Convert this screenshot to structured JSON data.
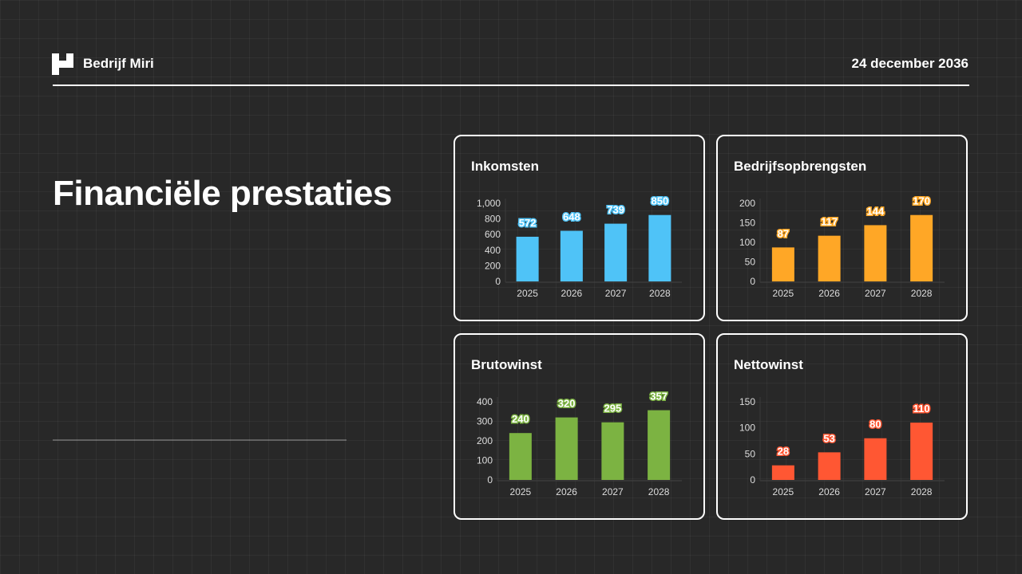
{
  "header": {
    "brand": "Bedrijf Miri",
    "date": "24 december 2036"
  },
  "page_title": "Financiële prestaties",
  "chart_data": [
    {
      "type": "bar",
      "title": "Inkomsten",
      "categories": [
        "2025",
        "2026",
        "2027",
        "2028"
      ],
      "values": [
        572,
        648,
        739,
        850
      ],
      "ylim": [
        0,
        1000
      ],
      "yticks": [
        "0",
        "200",
        "400",
        "600",
        "800",
        "1,000"
      ],
      "tickvals": [
        0,
        200,
        400,
        600,
        800,
        1000
      ],
      "color": "#4fc3f7"
    },
    {
      "type": "bar",
      "title": "Bedrijfsopbrengsten",
      "categories": [
        "2025",
        "2026",
        "2027",
        "2028"
      ],
      "values": [
        87,
        117,
        144,
        170
      ],
      "ylim": [
        0,
        200
      ],
      "yticks": [
        "0",
        "50",
        "100",
        "150",
        "200"
      ],
      "tickvals": [
        0,
        50,
        100,
        150,
        200
      ],
      "color": "#ffa726"
    },
    {
      "type": "bar",
      "title": "Brutowinst",
      "categories": [
        "2025",
        "2026",
        "2027",
        "2028"
      ],
      "values": [
        240,
        320,
        295,
        357
      ],
      "ylim": [
        0,
        400
      ],
      "yticks": [
        "0",
        "100",
        "200",
        "300",
        "400"
      ],
      "tickvals": [
        0,
        100,
        200,
        300,
        400
      ],
      "color": "#7cb342"
    },
    {
      "type": "bar",
      "title": "Nettowinst",
      "categories": [
        "2025",
        "2026",
        "2027",
        "2028"
      ],
      "values": [
        28,
        53,
        80,
        110
      ],
      "ylim": [
        0,
        150
      ],
      "yticks": [
        "0",
        "50",
        "100",
        "150"
      ],
      "tickvals": [
        0,
        50,
        100,
        150
      ],
      "color": "#ff5733"
    }
  ]
}
